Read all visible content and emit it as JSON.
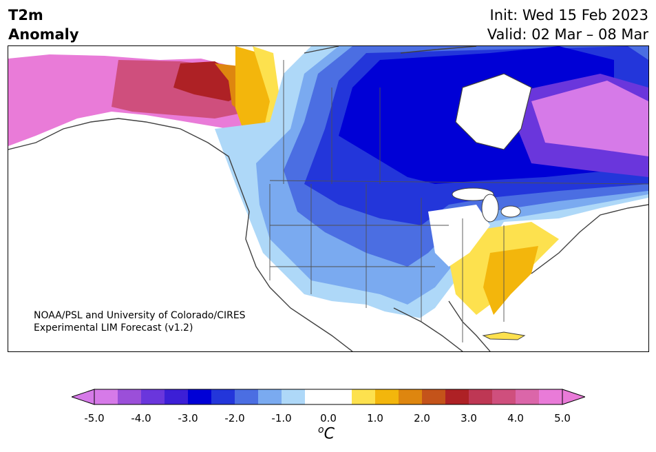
{
  "header": {
    "title_line1": "T2m",
    "title_line2": "Anomaly",
    "init": "Init: Wed 15 Feb 2023",
    "valid": "Valid: 02 Mar – 08 Mar"
  },
  "credit": {
    "line1": "NOAA/PSL and University of Colorado/CIRES",
    "line2": "Experimental LIM Forecast (v1.2)"
  },
  "colorbar": {
    "ticks": [
      "-5.0",
      "-4.0",
      "-3.0",
      "-2.0",
      "-1.0",
      "0.0",
      "1.0",
      "2.0",
      "3.0",
      "4.0",
      "5.0"
    ],
    "unit_base": "C",
    "unit_super": "o",
    "colors": [
      "#d67ae8",
      "#9b4fd9",
      "#6a36dc",
      "#3c1fd6",
      "#0000d6",
      "#2336da",
      "#4b6ee2",
      "#7aaaf0",
      "#aed8f8",
      "#ffffff",
      "#fde14e",
      "#f3b60c",
      "#de860f",
      "#c4531a",
      "#ae2125",
      "#be3754",
      "#cf4f7d",
      "#db66a9",
      "#e97bd8"
    ]
  },
  "map": {
    "region": "North America",
    "features": [
      "state-borders",
      "coastlines",
      "anomaly-contours"
    ]
  }
}
